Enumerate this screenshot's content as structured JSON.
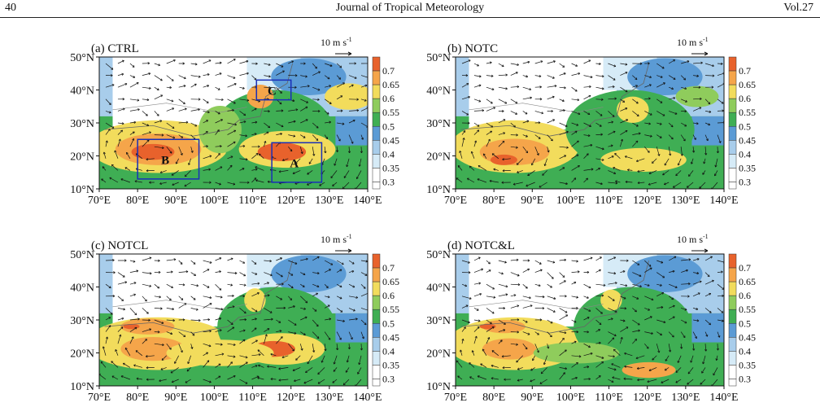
{
  "header": {
    "page_number": "40",
    "journal": "Journal of Tropical Meteorology",
    "volume": "Vol.27"
  },
  "reference_vector": {
    "text": "10 m s",
    "exponent": "-1"
  },
  "colorbar": {
    "labels": [
      "0.7",
      "0.65",
      "0.6",
      "0.55",
      "0.5",
      "0.45",
      "0.4",
      "0.35",
      "0.3"
    ],
    "colors": [
      "#e8622c",
      "#f5a54a",
      "#f2dc5c",
      "#8fcc5c",
      "#3fae54",
      "#5b9bd5",
      "#a8cdeb",
      "#d6ebf7",
      "#ffffff"
    ]
  },
  "axes": {
    "x_ticks": [
      "70°E",
      "80°E",
      "90°E",
      "100°E",
      "110°E",
      "120°E",
      "130°E",
      "140°E"
    ],
    "y_ticks": [
      "50°N",
      "40°N",
      "30°N",
      "20°N",
      "10°N"
    ]
  },
  "panels": [
    {
      "title": "(a) CTRL"
    },
    {
      "title": "(b) NOTC"
    },
    {
      "title": "(c) NOTCL"
    },
    {
      "title": "(d) NOTC&L"
    }
  ],
  "regions": [
    {
      "label": "C",
      "lon": [
        111,
        120
      ],
      "lat": [
        37,
        43
      ]
    },
    {
      "label": "B",
      "lon": [
        80,
        96
      ],
      "lat": [
        13,
        25
      ]
    },
    {
      "label": "A",
      "lon": [
        115,
        128
      ],
      "lat": [
        12,
        24
      ]
    }
  ]
}
